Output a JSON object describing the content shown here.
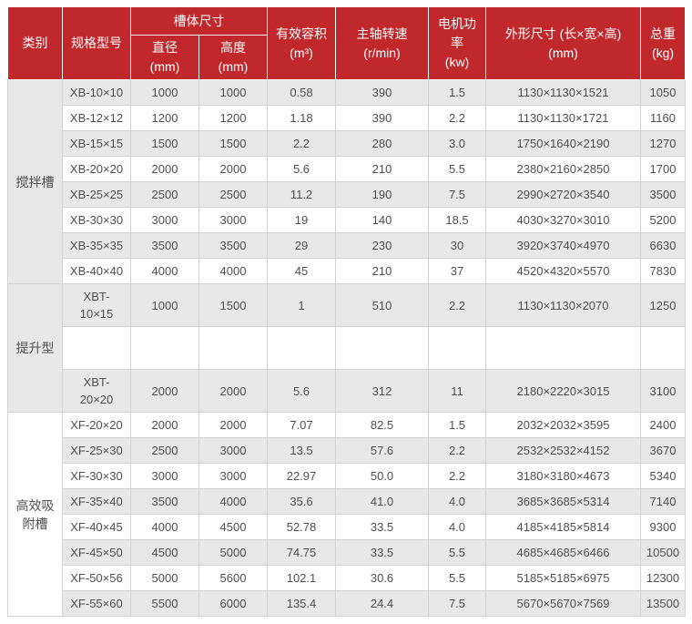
{
  "colors": {
    "header_bg": "#c0282c",
    "header_text": "#ffffff",
    "stripe": "#e9e8e8",
    "border": "#d2d2d2",
    "text": "#4f4f4f",
    "page_bg": "#ffffff"
  },
  "table": {
    "headers": {
      "category": "类别",
      "model": "规格型号",
      "tank_size": "槽体尺寸",
      "diameter": "直径\n(mm)",
      "height": "高度\n(mm)",
      "volume": "有效容积\n(m³)",
      "speed": "主轴转速\n(r/min)",
      "power": "电机功\n率\n(kw)",
      "dimensions": "外形尺寸 (长×宽×高)\n(mm)",
      "weight": "总重\n(kg)"
    },
    "groups": [
      {
        "category": "搅拌槽",
        "rows": [
          {
            "model": "XB-10×10",
            "diameter": "1000",
            "height": "1000",
            "volume": "0.58",
            "speed": "390",
            "power": "1.5",
            "dimensions": "1130×1130×1521",
            "weight": "1050"
          },
          {
            "model": "XB-12×12",
            "diameter": "1200",
            "height": "1200",
            "volume": "1.18",
            "speed": "390",
            "power": "2.2",
            "dimensions": "1130×1130×1721",
            "weight": "1160"
          },
          {
            "model": "XB-15×15",
            "diameter": "1500",
            "height": "1500",
            "volume": "2.2",
            "speed": "280",
            "power": "3.0",
            "dimensions": "1750×1640×2190",
            "weight": "1270"
          },
          {
            "model": "XB-20×20",
            "diameter": "2000",
            "height": "2000",
            "volume": "5.6",
            "speed": "210",
            "power": "5.5",
            "dimensions": "2380×2160×2850",
            "weight": "1700"
          },
          {
            "model": "XB-25×25",
            "diameter": "2500",
            "height": "2500",
            "volume": "11.2",
            "speed": "190",
            "power": "7.5",
            "dimensions": "2990×2720×3540",
            "weight": "3500"
          },
          {
            "model": "XB-30×30",
            "diameter": "3000",
            "height": "3000",
            "volume": "19",
            "speed": "140",
            "power": "18.5",
            "dimensions": "4030×3270×3010",
            "weight": "5200"
          },
          {
            "model": "XB-35×35",
            "diameter": "3500",
            "height": "3500",
            "volume": "29",
            "speed": "230",
            "power": "30",
            "dimensions": "3920×3740×4970",
            "weight": "6630"
          },
          {
            "model": "XB-40×40",
            "diameter": "4000",
            "height": "4000",
            "volume": "45",
            "speed": "210",
            "power": "37",
            "dimensions": "4520×4320×5570",
            "weight": "7830"
          }
        ]
      },
      {
        "category": "提升型",
        "rows": [
          {
            "model": "XBT-\n10×15",
            "diameter": "1000",
            "height": "1500",
            "volume": "1",
            "speed": "510",
            "power": "2.2",
            "dimensions": "1130×1130×2070",
            "weight": "1250"
          },
          {
            "model": "",
            "diameter": "",
            "height": "",
            "volume": "",
            "speed": "",
            "power": "",
            "dimensions": "",
            "weight": ""
          },
          {
            "model": "XBT-\n20×20",
            "diameter": "2000",
            "height": "2000",
            "volume": "5.6",
            "speed": "312",
            "power": "11",
            "dimensions": "2180×2220×3015",
            "weight": "3100"
          }
        ]
      },
      {
        "category": "高效吸附槽",
        "rows": [
          {
            "model": "XF-20×20",
            "diameter": "2000",
            "height": "2000",
            "volume": "7.07",
            "speed": "82.5",
            "power": "1.5",
            "dimensions": "2032×2032×3595",
            "weight": "2400"
          },
          {
            "model": "XF-25×30",
            "diameter": "2500",
            "height": "3000",
            "volume": "13.5",
            "speed": "57.6",
            "power": "2.2",
            "dimensions": "2532×2532×4152",
            "weight": "3670"
          },
          {
            "model": "XF-30×30",
            "diameter": "3000",
            "height": "3000",
            "volume": "22.97",
            "speed": "50.0",
            "power": "2.2",
            "dimensions": "3180×3180×4673",
            "weight": "5340"
          },
          {
            "model": "XF-35×40",
            "diameter": "3500",
            "height": "4000",
            "volume": "35.6",
            "speed": "41.0",
            "power": "4.0",
            "dimensions": "3685×3685×5314",
            "weight": "7140"
          },
          {
            "model": "XF-40×45",
            "diameter": "4000",
            "height": "4500",
            "volume": "52.78",
            "speed": "33.5",
            "power": "4.0",
            "dimensions": "4185×4185×5814",
            "weight": "9300"
          },
          {
            "model": "XF-45×50",
            "diameter": "4500",
            "height": "5000",
            "volume": "74.75",
            "speed": "33.5",
            "power": "5.5",
            "dimensions": "4685×4685×6466",
            "weight": "10500"
          },
          {
            "model": "XF-50×56",
            "diameter": "5000",
            "height": "5600",
            "volume": "102.1",
            "speed": "30.6",
            "power": "5.5",
            "dimensions": "5185×5185×6975",
            "weight": "12300"
          },
          {
            "model": "XF-55×60",
            "diameter": "5500",
            "height": "6000",
            "volume": "135.4",
            "speed": "24.4",
            "power": "7.5",
            "dimensions": "5670×5670×7569",
            "weight": "13500"
          }
        ]
      }
    ]
  }
}
